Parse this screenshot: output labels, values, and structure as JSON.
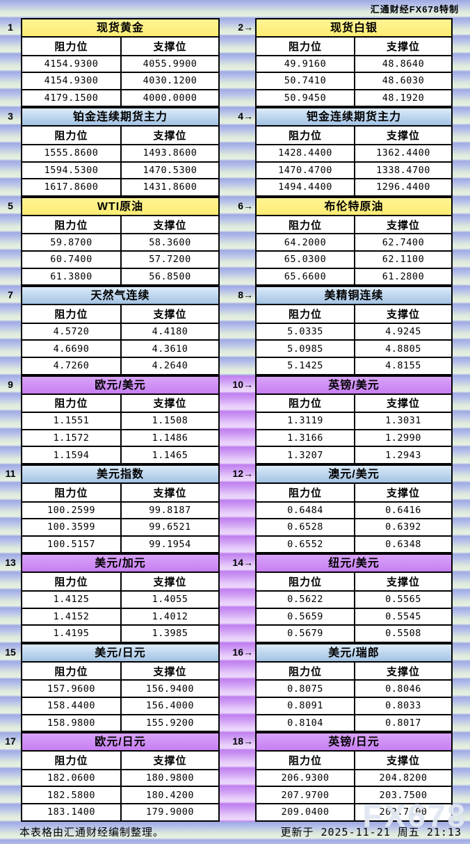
{
  "brand": "汇通财经FX678特制",
  "watermark": "FX678",
  "footer": {
    "note": "本表格由汇通财经编制整理。",
    "updated": "更新于 2025-11-21 周五 21:13"
  },
  "colors": {
    "yellow_title": "#FDEC74",
    "blue_title": "#BCD5EE",
    "purple_title": "#C77EF2",
    "stripe_blue": "#A9B3E6",
    "stripe_green": "#E3EFDF",
    "gutter_purple": "#C28AF0",
    "border": "#000000"
  },
  "table": {
    "col_headers": {
      "resistance": "阻力位",
      "support": "支撑位"
    },
    "pairs": [
      {
        "left_no": "1",
        "right_no": "2→",
        "gutter": "blue",
        "left": {
          "title": "现货黄金",
          "color": "yellow",
          "rows": [
            [
              "4154.9300",
              "4055.9900"
            ],
            [
              "4154.9300",
              "4030.1200"
            ],
            [
              "4179.1500",
              "4000.0000"
            ]
          ]
        },
        "right": {
          "title": "现货白银",
          "color": "yellow",
          "rows": [
            [
              "49.9160",
              "48.8640"
            ],
            [
              "50.7410",
              "48.6030"
            ],
            [
              "50.9450",
              "48.1920"
            ]
          ]
        }
      },
      {
        "left_no": "3",
        "right_no": "4→",
        "gutter": "blue",
        "left": {
          "title": "铂金连续期货主力",
          "color": "blue",
          "rows": [
            [
              "1555.8600",
              "1493.8600"
            ],
            [
              "1594.5300",
              "1470.5300"
            ],
            [
              "1617.8600",
              "1431.8600"
            ]
          ]
        },
        "right": {
          "title": "钯金连续期货主力",
          "color": "blue",
          "rows": [
            [
              "1428.4400",
              "1362.4400"
            ],
            [
              "1470.4700",
              "1338.4700"
            ],
            [
              "1494.4400",
              "1296.4400"
            ]
          ]
        }
      },
      {
        "left_no": "5",
        "right_no": "6→",
        "gutter": "blue",
        "left": {
          "title": "WTI原油",
          "color": "yellow",
          "rows": [
            [
              "59.8700",
              "58.3600"
            ],
            [
              "60.7400",
              "57.7200"
            ],
            [
              "61.3800",
              "56.8500"
            ]
          ]
        },
        "right": {
          "title": "布伦特原油",
          "color": "yellow",
          "rows": [
            [
              "64.2000",
              "62.7400"
            ],
            [
              "65.0300",
              "62.1100"
            ],
            [
              "65.6600",
              "61.2800"
            ]
          ]
        }
      },
      {
        "left_no": "7",
        "right_no": "8→",
        "gutter": "blue",
        "left": {
          "title": "天然气连续",
          "color": "blue",
          "rows": [
            [
              "4.5720",
              "4.4180"
            ],
            [
              "4.6690",
              "4.3610"
            ],
            [
              "4.7260",
              "4.2640"
            ]
          ]
        },
        "right": {
          "title": "美精铜连续",
          "color": "blue",
          "rows": [
            [
              "5.0335",
              "4.9245"
            ],
            [
              "5.0985",
              "4.8805"
            ],
            [
              "5.1425",
              "4.8155"
            ]
          ]
        }
      },
      {
        "left_no": "9",
        "right_no": "10→",
        "gutter": "purple",
        "left": {
          "title": "欧元/美元",
          "color": "purple",
          "rows": [
            [
              "1.1551",
              "1.1508"
            ],
            [
              "1.1572",
              "1.1486"
            ],
            [
              "1.1594",
              "1.1465"
            ]
          ]
        },
        "right": {
          "title": "英镑/美元",
          "color": "purple",
          "rows": [
            [
              "1.3119",
              "1.3031"
            ],
            [
              "1.3166",
              "1.2990"
            ],
            [
              "1.3207",
              "1.2943"
            ]
          ]
        }
      },
      {
        "left_no": "11",
        "right_no": "12→",
        "gutter": "purple",
        "left": {
          "title": "美元指数",
          "color": "blue",
          "rows": [
            [
              "100.2599",
              "99.8187"
            ],
            [
              "100.3599",
              "99.6521"
            ],
            [
              "100.5157",
              "99.1954"
            ]
          ]
        },
        "right": {
          "title": "澳元/美元",
          "color": "blue",
          "rows": [
            [
              "0.6484",
              "0.6416"
            ],
            [
              "0.6528",
              "0.6392"
            ],
            [
              "0.6552",
              "0.6348"
            ]
          ]
        }
      },
      {
        "left_no": "13",
        "right_no": "14→",
        "gutter": "purple",
        "left": {
          "title": "美元/加元",
          "color": "purple",
          "rows": [
            [
              "1.4125",
              "1.4055"
            ],
            [
              "1.4152",
              "1.4012"
            ],
            [
              "1.4195",
              "1.3985"
            ]
          ]
        },
        "right": {
          "title": "纽元/美元",
          "color": "purple",
          "rows": [
            [
              "0.5622",
              "0.5565"
            ],
            [
              "0.5659",
              "0.5545"
            ],
            [
              "0.5679",
              "0.5508"
            ]
          ]
        }
      },
      {
        "left_no": "15",
        "right_no": "16→",
        "gutter": "purple",
        "left": {
          "title": "美元/日元",
          "color": "blue",
          "rows": [
            [
              "157.9600",
              "156.9400"
            ],
            [
              "158.4400",
              "156.4000"
            ],
            [
              "158.9800",
              "155.9200"
            ]
          ]
        },
        "right": {
          "title": "美元/瑞郎",
          "color": "blue",
          "rows": [
            [
              "0.8075",
              "0.8046"
            ],
            [
              "0.8091",
              "0.8033"
            ],
            [
              "0.8104",
              "0.8017"
            ]
          ]
        }
      },
      {
        "left_no": "17",
        "right_no": "18→",
        "gutter": "purple",
        "left": {
          "title": "欧元/日元",
          "color": "purple",
          "rows": [
            [
              "182.0600",
              "180.9800"
            ],
            [
              "182.5800",
              "180.4200"
            ],
            [
              "183.1400",
              "179.9000"
            ]
          ]
        },
        "right": {
          "title": "英镑/日元",
          "color": "purple",
          "rows": [
            [
              "206.9300",
              "204.8200"
            ],
            [
              "207.9700",
              "203.7500"
            ],
            [
              "209.0400",
              "202.7100"
            ]
          ]
        }
      }
    ]
  }
}
